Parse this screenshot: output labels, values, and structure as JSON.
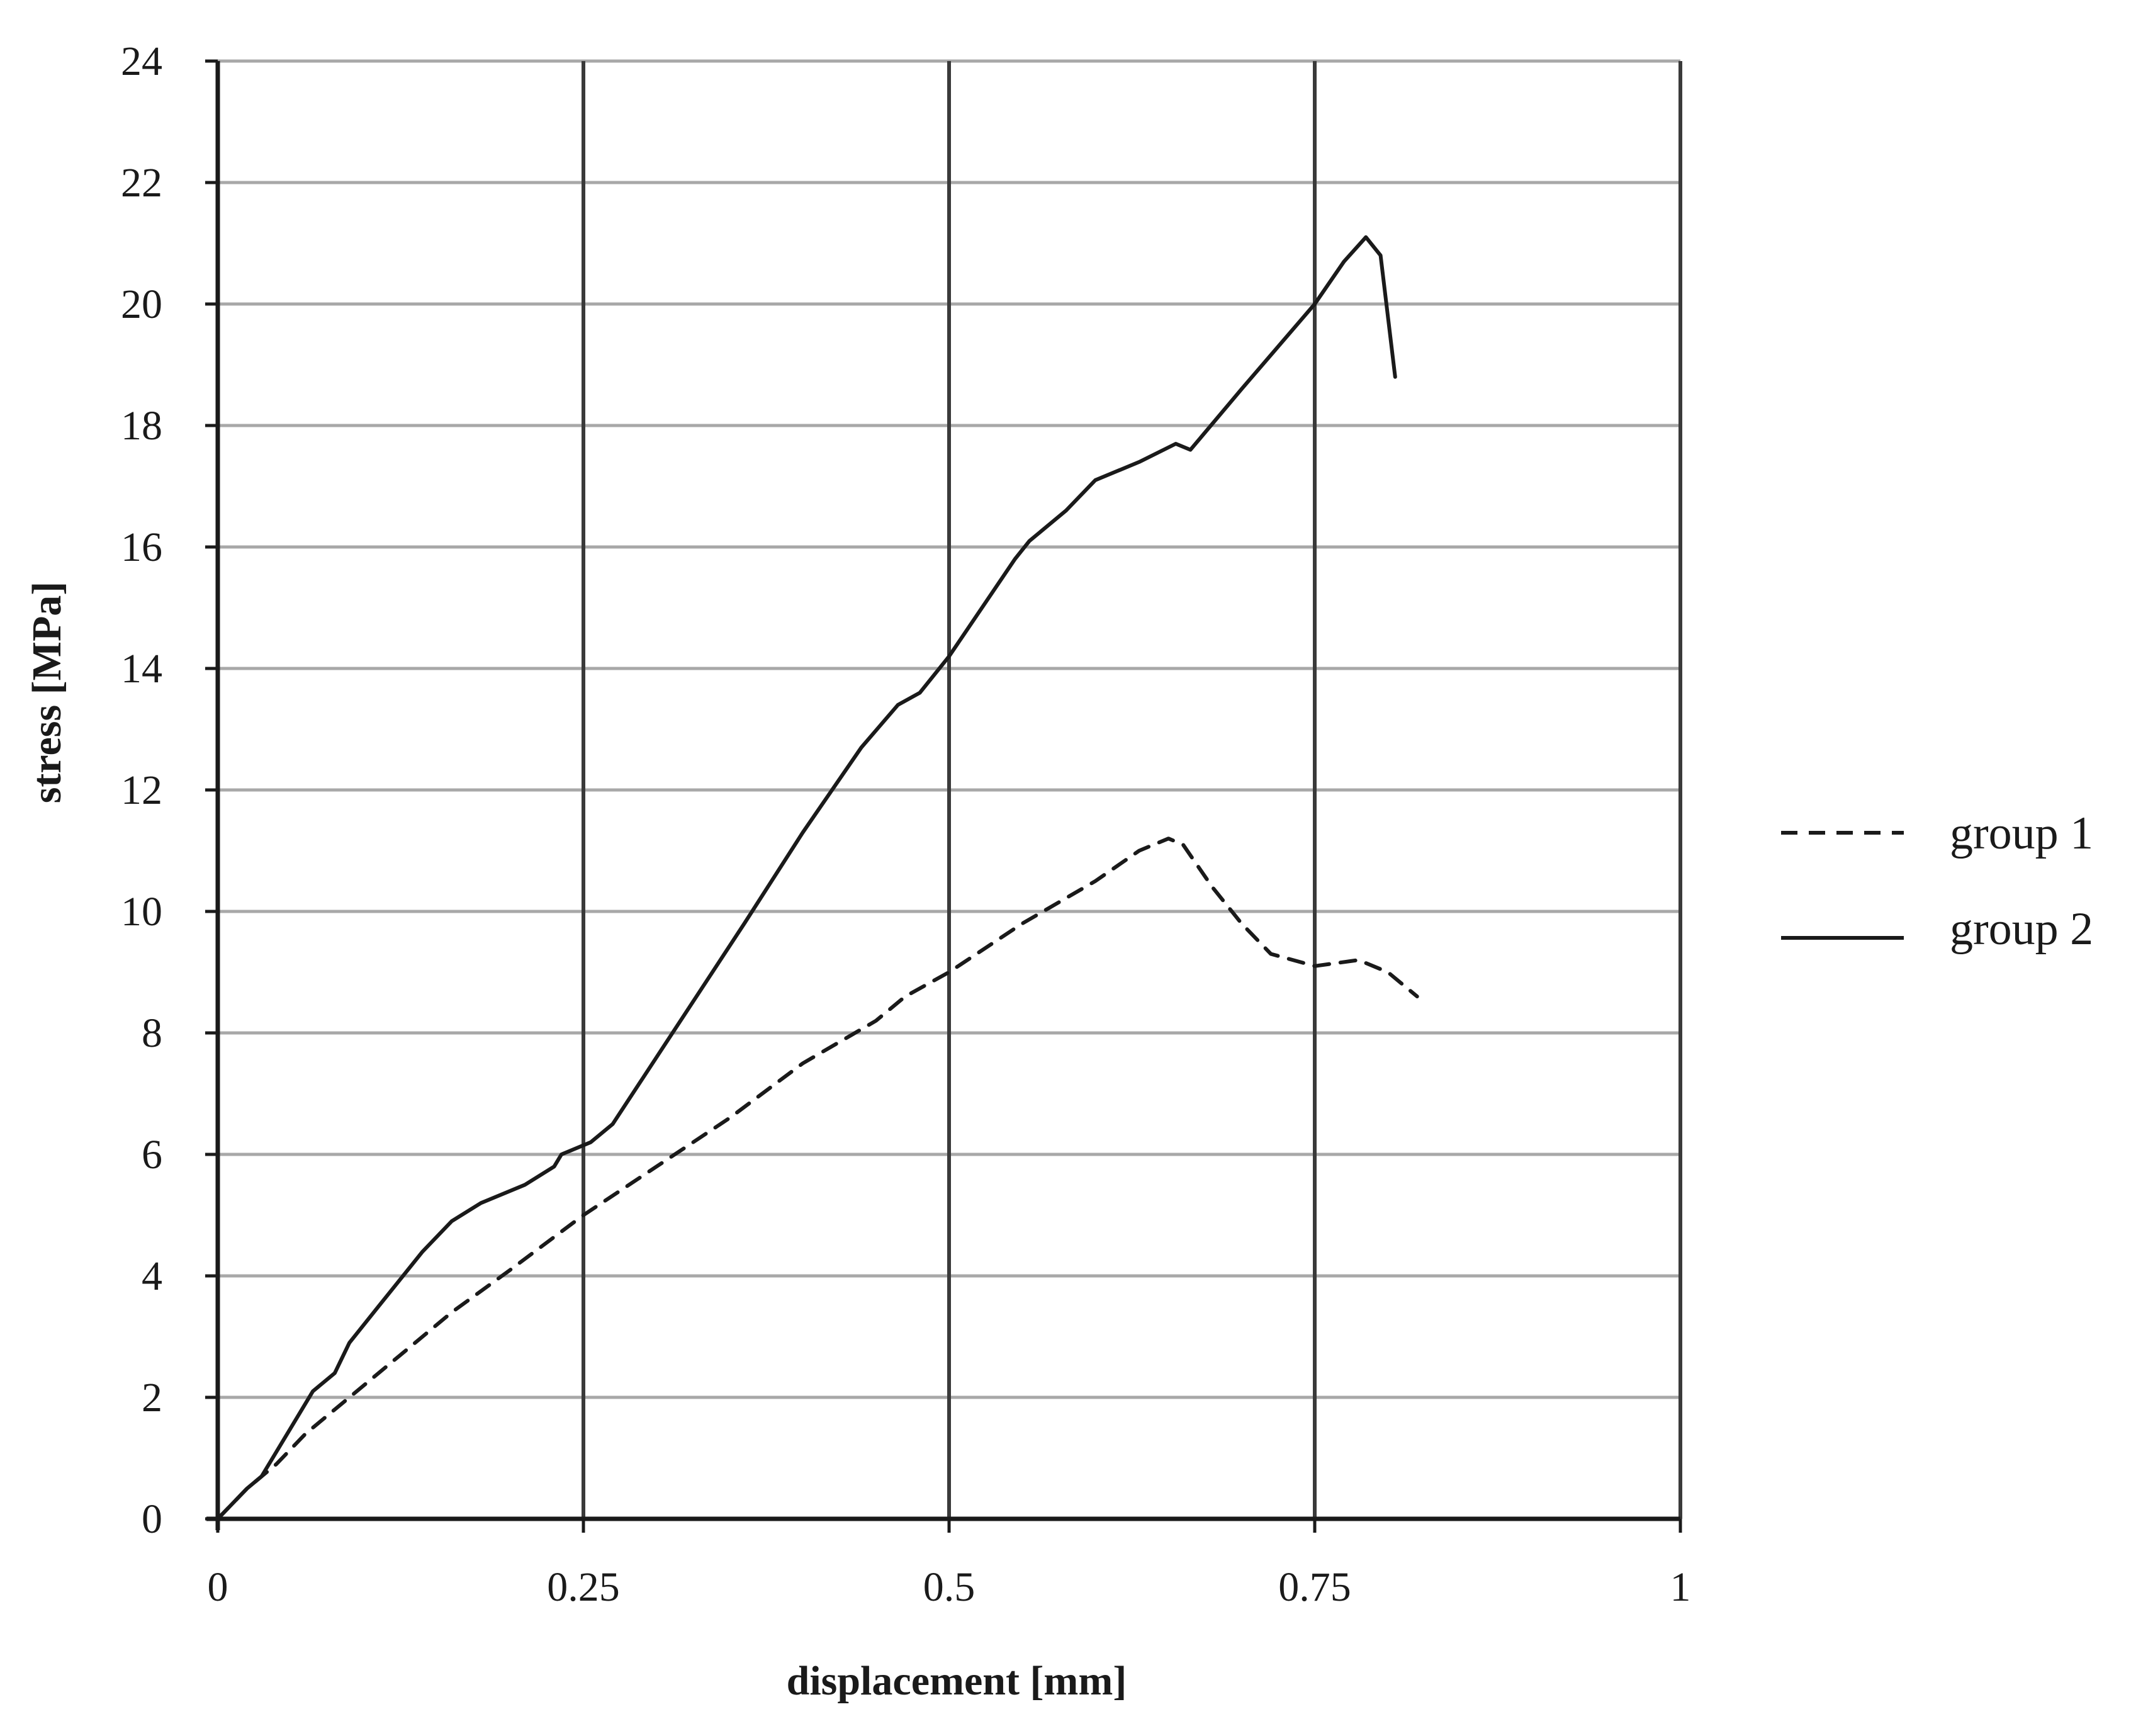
{
  "chart_data": {
    "type": "line",
    "xlabel": "displacement [mm]",
    "ylabel": "stress [MPa]",
    "xlim": [
      0,
      1
    ],
    "ylim": [
      0,
      24
    ],
    "x_ticks": [
      "0",
      "0.25",
      "0.5",
      "0.75",
      "1"
    ],
    "y_ticks": [
      "0",
      "2",
      "4",
      "6",
      "8",
      "10",
      "12",
      "14",
      "16",
      "18",
      "20",
      "22",
      "24"
    ],
    "grid": "on (vertical and horizontal)",
    "legend": "right",
    "series": [
      {
        "name": "group 1",
        "style": "dashed",
        "color": "#1a1a1a",
        "points": [
          [
            0,
            0
          ],
          [
            0.02,
            0.5
          ],
          [
            0.04,
            0.9
          ],
          [
            0.06,
            1.4
          ],
          [
            0.08,
            1.8
          ],
          [
            0.1,
            2.2
          ],
          [
            0.13,
            2.8
          ],
          [
            0.16,
            3.4
          ],
          [
            0.2,
            4.1
          ],
          [
            0.25,
            5.0
          ],
          [
            0.3,
            5.8
          ],
          [
            0.35,
            6.6
          ],
          [
            0.4,
            7.5
          ],
          [
            0.45,
            8.2
          ],
          [
            0.47,
            8.6
          ],
          [
            0.5,
            9.0
          ],
          [
            0.55,
            9.8
          ],
          [
            0.6,
            10.5
          ],
          [
            0.63,
            11.0
          ],
          [
            0.65,
            11.2
          ],
          [
            0.66,
            11.1
          ],
          [
            0.68,
            10.4
          ],
          [
            0.7,
            9.8
          ],
          [
            0.72,
            9.3
          ],
          [
            0.75,
            9.1
          ],
          [
            0.78,
            9.2
          ],
          [
            0.8,
            9.0
          ],
          [
            0.82,
            8.6
          ]
        ]
      },
      {
        "name": "group 2",
        "style": "solid",
        "color": "#1a1a1a",
        "points": [
          [
            0,
            0
          ],
          [
            0.02,
            0.5
          ],
          [
            0.03,
            0.7
          ],
          [
            0.05,
            1.5
          ],
          [
            0.065,
            2.1
          ],
          [
            0.08,
            2.4
          ],
          [
            0.09,
            2.9
          ],
          [
            0.11,
            3.5
          ],
          [
            0.14,
            4.4
          ],
          [
            0.16,
            4.9
          ],
          [
            0.18,
            5.2
          ],
          [
            0.21,
            5.5
          ],
          [
            0.23,
            5.8
          ],
          [
            0.235,
            6.0
          ],
          [
            0.255,
            6.2
          ],
          [
            0.27,
            6.5
          ],
          [
            0.3,
            7.6
          ],
          [
            0.33,
            8.7
          ],
          [
            0.36,
            9.8
          ],
          [
            0.4,
            11.3
          ],
          [
            0.44,
            12.7
          ],
          [
            0.465,
            13.4
          ],
          [
            0.48,
            13.6
          ],
          [
            0.5,
            14.2
          ],
          [
            0.545,
            15.8
          ],
          [
            0.555,
            16.1
          ],
          [
            0.58,
            16.6
          ],
          [
            0.6,
            17.1
          ],
          [
            0.63,
            17.4
          ],
          [
            0.655,
            17.7
          ],
          [
            0.665,
            17.6
          ],
          [
            0.7,
            18.6
          ],
          [
            0.75,
            20.0
          ],
          [
            0.77,
            20.7
          ],
          [
            0.785,
            21.1
          ],
          [
            0.795,
            20.8
          ],
          [
            0.805,
            18.8
          ]
        ]
      }
    ]
  }
}
